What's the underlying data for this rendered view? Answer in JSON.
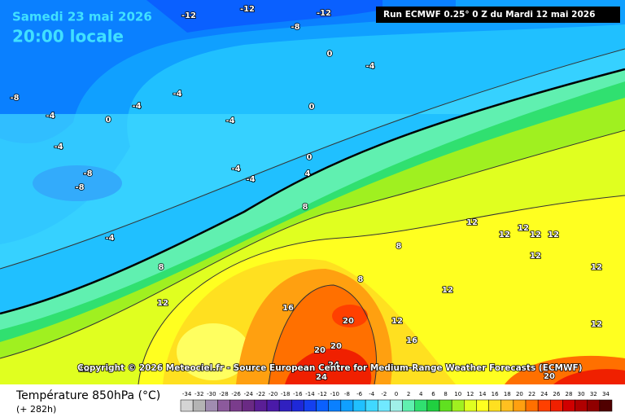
{
  "header": {
    "date": "Samedi 23 mai 2026",
    "time": "20:00 locale",
    "run": "Run ECMWF 0.25° 0 Z du Mardi 12 mai 2026"
  },
  "copyright": "Copyright © 2026 Meteociel.fr - Source European Centre for Medium-Range Weather Forecasts (ECMWF)",
  "legend": {
    "title": "Température 850hPa (°C)",
    "lead": "(+ 282h)",
    "values": [
      -34,
      -32,
      -30,
      -28,
      -26,
      -24,
      -22,
      -20,
      -18,
      -16,
      -14,
      -12,
      -10,
      -8,
      -6,
      -4,
      -2,
      0,
      2,
      4,
      6,
      8,
      10,
      12,
      14,
      16,
      18,
      20,
      22,
      24,
      26,
      28,
      30,
      32,
      34
    ],
    "colors": [
      "#d4d4d4",
      "#b4b4b4",
      "#a08cb0",
      "#8c5a9c",
      "#7a3c8c",
      "#6a2a84",
      "#5a1e96",
      "#4a1aa8",
      "#3020c0",
      "#1e28d8",
      "#1440f0",
      "#0a60ff",
      "#0a80ff",
      "#10a0ff",
      "#20c0ff",
      "#40d8ff",
      "#70e8ff",
      "#a0f0e8",
      "#60f0b0",
      "#30e070",
      "#20d040",
      "#60e020",
      "#a0f020",
      "#e0ff20",
      "#ffff20",
      "#ffe020",
      "#ffc020",
      "#ffa010",
      "#ff7000",
      "#ff4000",
      "#f02000",
      "#d00000",
      "#b00000",
      "#900000",
      "#500000"
    ]
  },
  "contour_labels": [
    -12,
    -12,
    -12,
    -8,
    0,
    -4,
    -4,
    -4,
    0,
    0,
    -4,
    -4,
    -8,
    -4,
    -8,
    -8,
    -4,
    -4,
    0,
    4,
    -4,
    8,
    8,
    8,
    8,
    12,
    12,
    12,
    12,
    12,
    12,
    12,
    12,
    12,
    12,
    12,
    12,
    16,
    16,
    20,
    20,
    20,
    20,
    24,
    24
  ]
}
